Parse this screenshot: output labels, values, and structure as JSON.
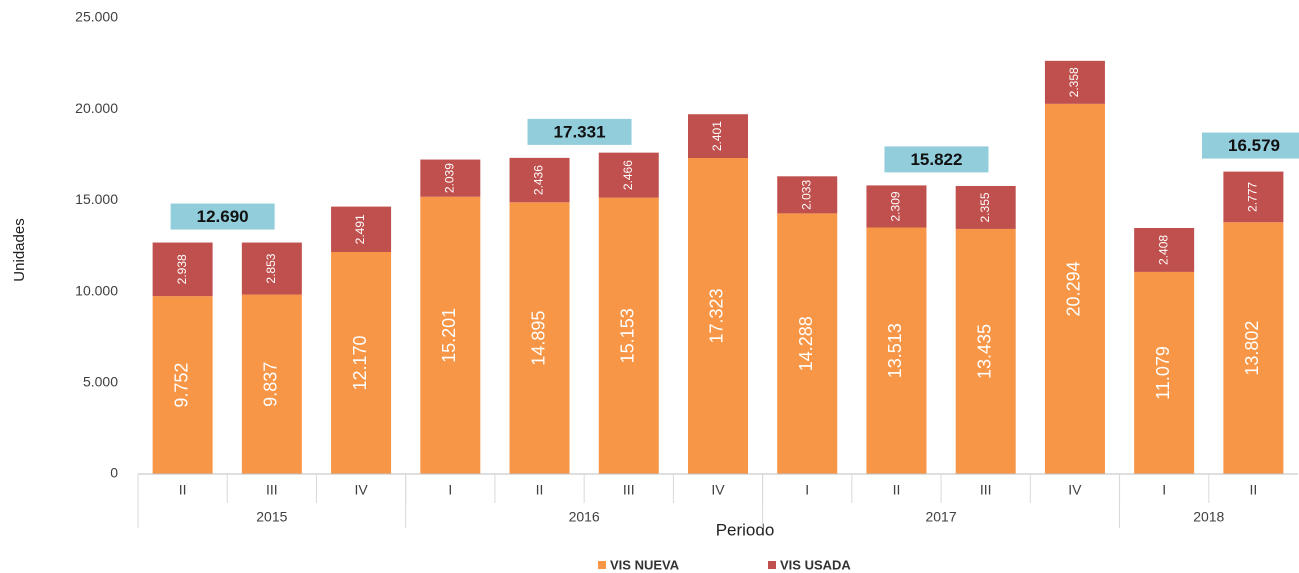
{
  "chart_data": {
    "type": "stacked_bar",
    "categories": [
      "II",
      "III",
      "IV",
      "I",
      "II",
      "III",
      "IV",
      "I",
      "II",
      "III",
      "IV",
      "I",
      "II"
    ],
    "groups": [
      {
        "label": "2015",
        "span": 3
      },
      {
        "label": "2016",
        "span": 4
      },
      {
        "label": "2017",
        "span": 4
      },
      {
        "label": "2018",
        "span": 2
      }
    ],
    "series": [
      {
        "name": "VIS NUEVA",
        "color": "#f79646",
        "values": [
          9752,
          9837,
          12170,
          15201,
          14895,
          15153,
          17323,
          14288,
          13513,
          13435,
          20294,
          11079,
          13802
        ],
        "value_labels": [
          "9.752",
          "9.837",
          "12.170",
          "15.201",
          "14.895",
          "15.153",
          "17.323",
          "14.288",
          "13.513",
          "13.435",
          "20.294",
          "11.079",
          "13.802"
        ]
      },
      {
        "name": "VIS USADA",
        "color": "#c0504d",
        "values": [
          2938,
          2853,
          2491,
          2039,
          2436,
          2466,
          2401,
          2033,
          2309,
          2355,
          2358,
          2408,
          2777
        ],
        "value_labels": [
          "2.938",
          "2.853",
          "2.491",
          "2.039",
          "2.436",
          "2.466",
          "2.401",
          "2.033",
          "2.309",
          "2.355",
          "2.358",
          "2.408",
          "2.777"
        ]
      }
    ],
    "annotations": [
      {
        "text": "12.690",
        "value": 12690,
        "x": 0
      },
      {
        "text": "17.331",
        "value": 17331,
        "x": 4
      },
      {
        "text": "15.822",
        "value": 15822,
        "x": 8
      },
      {
        "text": "16.579",
        "value": 16579,
        "x": 12
      }
    ],
    "annotation_color": "#92cddc",
    "xlabel": "Periodo",
    "ylabel": "Unidades",
    "ylim": [
      0,
      25000
    ],
    "yticks": [
      0,
      {
        "value": 5000,
        "label": "5.000"
      },
      {
        "value": 10000,
        "label": "10.000"
      },
      {
        "value": 15000,
        "label": "15.000"
      },
      {
        "value": 20000,
        "label": "20.000"
      },
      {
        "value": 25000,
        "label": "25.000"
      }
    ],
    "grid": false,
    "legend": "bottom"
  }
}
